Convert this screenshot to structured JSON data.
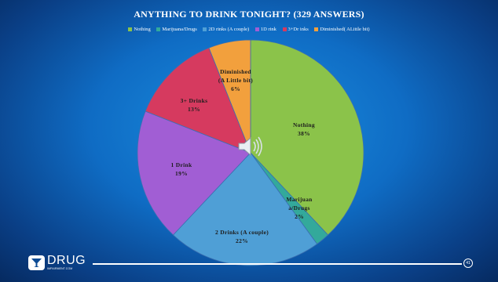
{
  "chart_data": {
    "type": "pie",
    "title": "ANYTHING TO DRINK TONIGHT? (329 ANSWERS)",
    "legend_position": "top",
    "legend": [
      {
        "label": "Nothing",
        "color": "#8bc34a"
      },
      {
        "label": "Marijuana/Drugs",
        "color": "#33a99b"
      },
      {
        "label": "2D rinks (A couple)",
        "color": "#4f9fd6"
      },
      {
        "label": "1D rink",
        "color": "#a15ed4"
      },
      {
        "label": "3+Dr inks",
        "color": "#d63a5f"
      },
      {
        "label": "Diminished( ALittle bit)",
        "color": "#f2a03d"
      }
    ],
    "slices": [
      {
        "label": "Nothing",
        "value": 38,
        "percent_label": "38%",
        "color": "#8bc34a"
      },
      {
        "label": "Marijuana/Drugs",
        "value": 2,
        "percent_label": "2%",
        "color": "#33a99b"
      },
      {
        "label": "2 Drinks (A couple)",
        "value": 22,
        "percent_label": "22%",
        "color": "#4f9fd6"
      },
      {
        "label": "1 Drink",
        "value": 19,
        "percent_label": "19%",
        "color": "#a15ed4"
      },
      {
        "label": "3+ Drinks",
        "value": 13,
        "percent_label": "13%",
        "color": "#d63a5f"
      },
      {
        "label": "Diminished (A Little bit)",
        "value": 6,
        "percent_label": "6%",
        "color": "#f2a03d"
      }
    ],
    "slice_text": [
      {
        "line1": "Nothing",
        "line2": "38%"
      },
      {
        "line1": "Marijuan",
        "line2": "a/Drugs",
        "line3": "2%"
      },
      {
        "line1": "2 Drinks (A couple)",
        "line2": "22%"
      },
      {
        "line1": "1 Drink",
        "line2": "19%"
      },
      {
        "line1": "3+ Drinks",
        "line2": "13%"
      },
      {
        "line1": "Diminished",
        "line2": "(A Little bit)",
        "line3": "6%"
      }
    ]
  },
  "footer": {
    "logo_main": "DRUG",
    "logo_sub": "IMPAIRMENT.COM",
    "page_number": "41"
  },
  "icons": {
    "speaker": "speaker-icon",
    "logo": "logo-icon"
  }
}
